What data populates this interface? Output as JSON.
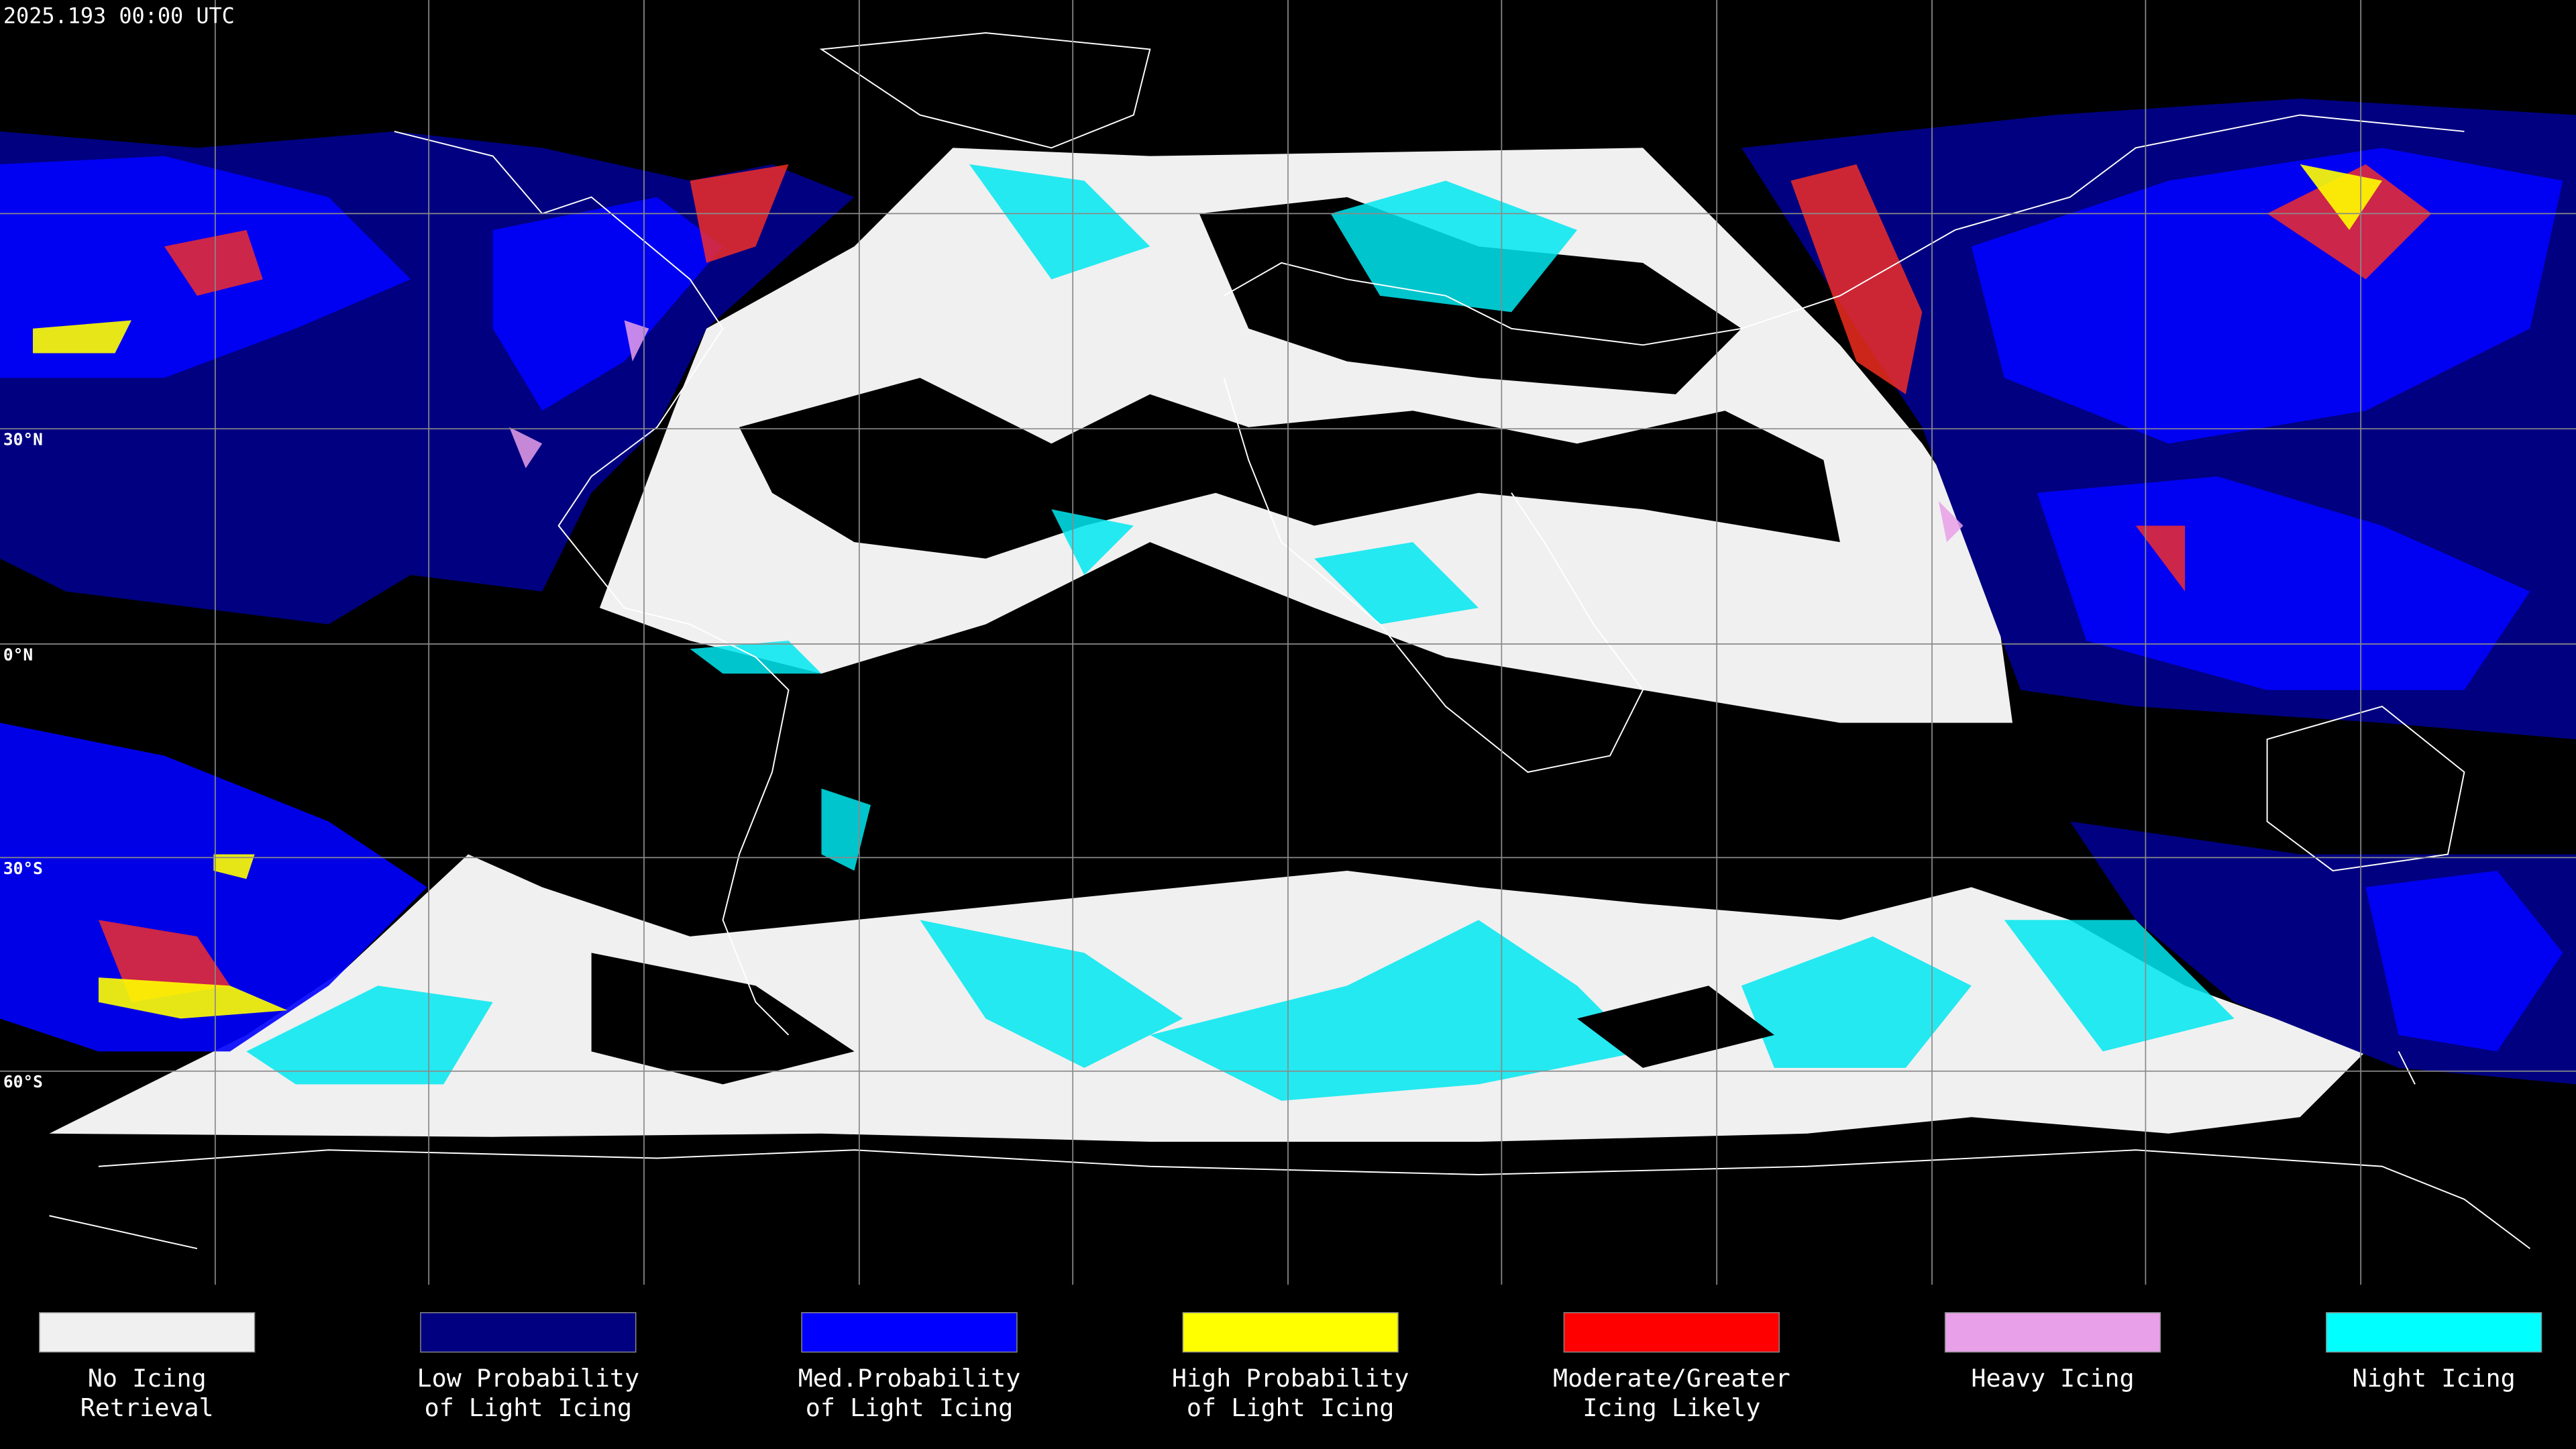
{
  "header": {
    "timestamp": "2025.193 00:00 UTC"
  },
  "map": {
    "lat_labels": [
      "30°N",
      "0°N",
      "30°S",
      "60°S"
    ]
  },
  "legend": {
    "items": [
      {
        "lines": [
          "No Icing",
          "Retrieval"
        ],
        "color": "#f0f0f0"
      },
      {
        "lines": [
          "Low Probability",
          "of Light Icing"
        ],
        "color": "#000080"
      },
      {
        "lines": [
          "Med.Probability",
          "of Light Icing"
        ],
        "color": "#0000ff"
      },
      {
        "lines": [
          "High Probability",
          "of Light Icing"
        ],
        "color": "#ffff00"
      },
      {
        "lines": [
          "Moderate/Greater",
          "Icing Likely"
        ],
        "color": "#ff0000"
      },
      {
        "lines": [
          "Heavy Icing"
        ],
        "color": "#e8a0e8"
      },
      {
        "lines": [
          "Night Icing"
        ],
        "color": "#00ffff"
      }
    ]
  }
}
